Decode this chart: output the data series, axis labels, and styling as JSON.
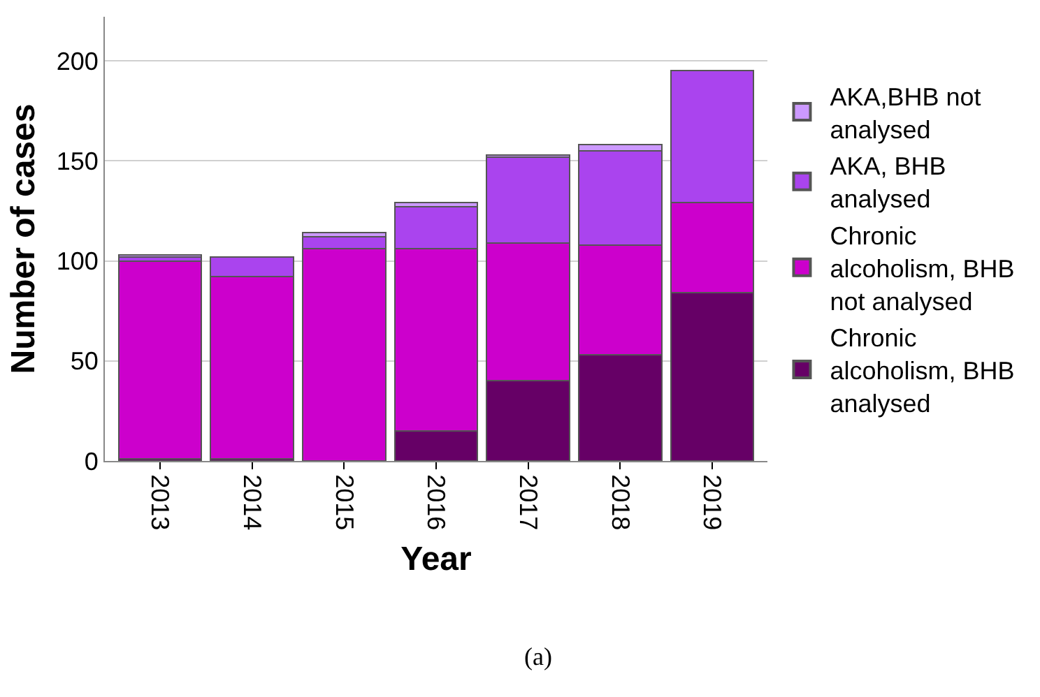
{
  "chart_data": {
    "type": "bar",
    "stacked": true,
    "xlabel": "Year",
    "ylabel": "Number of cases",
    "categories": [
      "2013",
      "2014",
      "2015",
      "2016",
      "2017",
      "2018",
      "2019"
    ],
    "series": [
      {
        "name": "Chronic alcoholism, BHB analysed",
        "color": "#660066",
        "values": [
          1,
          1,
          0,
          15,
          40,
          53,
          84
        ]
      },
      {
        "name": "Chronic alcoholism, BHB not analysed",
        "color": "#cc00cc",
        "values": [
          99,
          91,
          106,
          91,
          69,
          55,
          45
        ]
      },
      {
        "name": "AKA, BHB analysed",
        "color": "#aa44ee",
        "values": [
          2,
          10,
          6,
          21,
          43,
          47,
          66
        ]
      },
      {
        "name": "AKA,BHB not analysed",
        "color": "#cc99ff",
        "values": [
          1,
          0,
          2,
          2,
          1,
          3,
          0
        ]
      }
    ],
    "ylim": [
      0,
      222
    ],
    "yticks": [
      0,
      50,
      100,
      150,
      200
    ],
    "grid": "y",
    "legend": "right",
    "annotations": [
      "(a)"
    ]
  }
}
